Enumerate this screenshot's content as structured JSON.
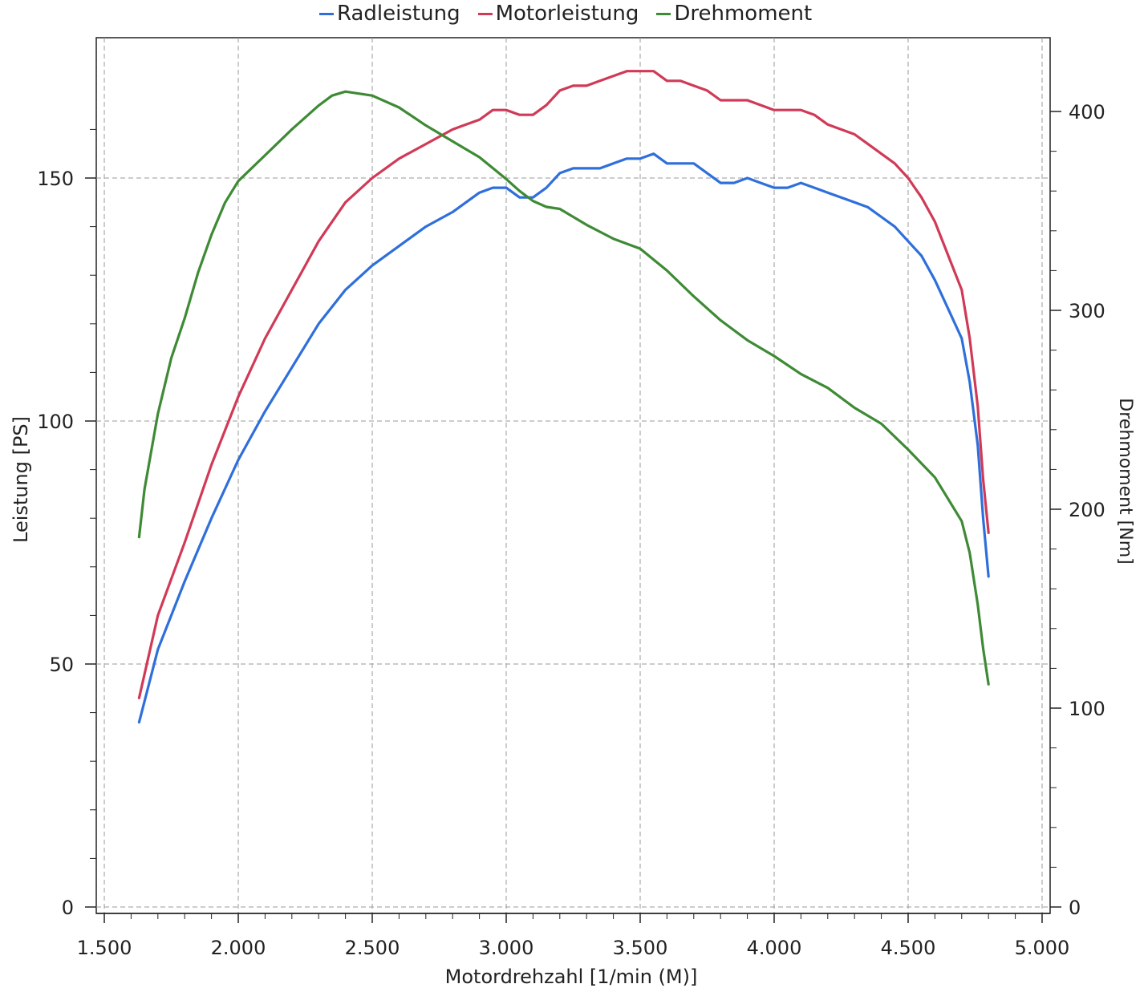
{
  "chart_data": {
    "type": "line",
    "xlabel": "Motordrehzahl [1/min (M)]",
    "ylabel": "Leistung [PS]",
    "y2label": "Drehmoment [Nm]",
    "xlim": [
      1500,
      5000
    ],
    "ylim": [
      0,
      167
    ],
    "y2lim": [
      0,
      415
    ],
    "x_ticks": [
      1500,
      2000,
      2500,
      3000,
      3500,
      4000,
      4500,
      5000
    ],
    "x_tick_labels": [
      "1.500",
      "2.000",
      "2.500",
      "3.000",
      "3.500",
      "4.000",
      "4.500",
      "5.000"
    ],
    "y_ticks": [
      0,
      50,
      100,
      150
    ],
    "y_tick_labels": [
      "0",
      "50",
      "100",
      "150"
    ],
    "y2_ticks": [
      0,
      100,
      200,
      300,
      400
    ],
    "y2_tick_labels": [
      "0",
      "100",
      "200",
      "300",
      "400"
    ],
    "grid": true,
    "legend_position": "top-center",
    "series": [
      {
        "name": "Radleistung",
        "axis": "left",
        "color": "#2f6fdb",
        "x": [
          1630,
          1700,
          1800,
          1900,
          2000,
          2100,
          2200,
          2300,
          2400,
          2500,
          2600,
          2700,
          2800,
          2850,
          2900,
          2950,
          3000,
          3050,
          3100,
          3150,
          3200,
          3250,
          3300,
          3350,
          3400,
          3450,
          3500,
          3550,
          3600,
          3650,
          3700,
          3750,
          3800,
          3850,
          3900,
          3950,
          4000,
          4050,
          4100,
          4150,
          4200,
          4250,
          4300,
          4350,
          4400,
          4450,
          4500,
          4550,
          4600,
          4650,
          4700,
          4730,
          4760,
          4780,
          4800
        ],
        "y": [
          38,
          53,
          67,
          80,
          92,
          102,
          111,
          120,
          127,
          132,
          136,
          140,
          143,
          145,
          147,
          148,
          148,
          146,
          146,
          148,
          151,
          152,
          152,
          152,
          153,
          154,
          154,
          155,
          153,
          153,
          153,
          151,
          149,
          149,
          150,
          149,
          148,
          148,
          149,
          148,
          147,
          146,
          145,
          144,
          142,
          140,
          137,
          134,
          129,
          123,
          117,
          108,
          95,
          80,
          68
        ]
      },
      {
        "name": "Motorleistung",
        "axis": "left",
        "color": "#d03a57",
        "x": [
          1630,
          1700,
          1800,
          1900,
          2000,
          2100,
          2200,
          2300,
          2400,
          2500,
          2600,
          2700,
          2800,
          2850,
          2900,
          2950,
          3000,
          3050,
          3100,
          3150,
          3200,
          3250,
          3300,
          3350,
          3400,
          3450,
          3500,
          3550,
          3600,
          3650,
          3700,
          3750,
          3800,
          3850,
          3900,
          3950,
          4000,
          4050,
          4100,
          4150,
          4200,
          4250,
          4300,
          4350,
          4400,
          4450,
          4500,
          4550,
          4600,
          4650,
          4700,
          4730,
          4760,
          4780,
          4800
        ],
        "y": [
          43,
          60,
          75,
          91,
          105,
          117,
          127,
          137,
          145,
          150,
          154,
          157,
          160,
          161,
          162,
          164,
          164,
          163,
          163,
          165,
          168,
          169,
          169,
          170,
          171,
          172,
          172,
          172,
          170,
          170,
          169,
          168,
          166,
          166,
          166,
          165,
          164,
          164,
          164,
          163,
          161,
          160,
          159,
          157,
          155,
          153,
          150,
          146,
          141,
          134,
          127,
          117,
          103,
          88,
          77
        ]
      },
      {
        "name": "Drehmoment",
        "axis": "right",
        "color": "#3e8a35",
        "x": [
          1630,
          1650,
          1700,
          1750,
          1800,
          1850,
          1900,
          1950,
          2000,
          2100,
          2200,
          2300,
          2350,
          2400,
          2450,
          2500,
          2600,
          2700,
          2800,
          2900,
          3000,
          3050,
          3100,
          3150,
          3200,
          3300,
          3400,
          3500,
          3600,
          3700,
          3800,
          3900,
          4000,
          4100,
          4200,
          4300,
          4400,
          4500,
          4600,
          4650,
          4700,
          4730,
          4760,
          4780,
          4800
        ],
        "y": [
          186,
          210,
          248,
          276,
          296,
          319,
          338,
          354,
          365,
          378,
          391,
          403,
          408,
          410,
          409,
          408,
          402,
          393,
          385,
          377,
          366,
          360,
          355,
          352,
          351,
          343,
          336,
          331,
          320,
          307,
          295,
          285,
          277,
          268,
          261,
          251,
          243,
          230,
          216,
          205,
          194,
          178,
          152,
          130,
          112
        ]
      }
    ]
  }
}
